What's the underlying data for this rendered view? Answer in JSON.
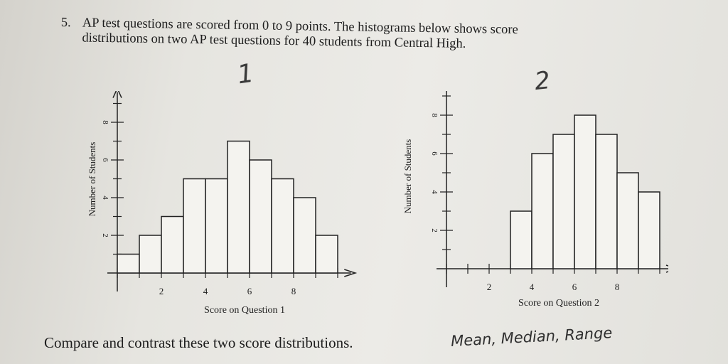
{
  "problem": {
    "number": "5.",
    "line1": "AP test questions are scored from 0 to 9 points. The histograms below shows score",
    "line2": "distributions on two AP test questions for  40  students from Central High."
  },
  "handwriting": {
    "graph1_label": "1",
    "graph2_label": "2",
    "answer_note": "Mean, Median, Range"
  },
  "bottom_prompt": "Compare and contrast these two score distributions.",
  "chart_data": [
    {
      "type": "bar",
      "categories": [
        "0",
        "1",
        "2",
        "3",
        "4",
        "5",
        "6",
        "7",
        "8",
        "9"
      ],
      "values": [
        1,
        2,
        3,
        5,
        5,
        7,
        6,
        5,
        4,
        2
      ],
      "xlabel": "Score on Question 1",
      "ylabel": "Number of Students",
      "xticks": [
        "2",
        "4",
        "6",
        "8"
      ],
      "yticks": [
        "2",
        "4",
        "6",
        "8"
      ],
      "ylim": [
        0,
        9
      ]
    },
    {
      "type": "bar",
      "categories": [
        "0",
        "1",
        "2",
        "3",
        "4",
        "5",
        "6",
        "7",
        "8",
        "9"
      ],
      "values": [
        0,
        0,
        0,
        3,
        6,
        7,
        8,
        7,
        5,
        4
      ],
      "xlabel": "Score on Question 2",
      "ylabel": "Number of Students",
      "xticks": [
        "2",
        "4",
        "6",
        "8"
      ],
      "yticks": [
        "2",
        "4",
        "6",
        "8"
      ],
      "ylim": [
        0,
        9
      ]
    }
  ]
}
